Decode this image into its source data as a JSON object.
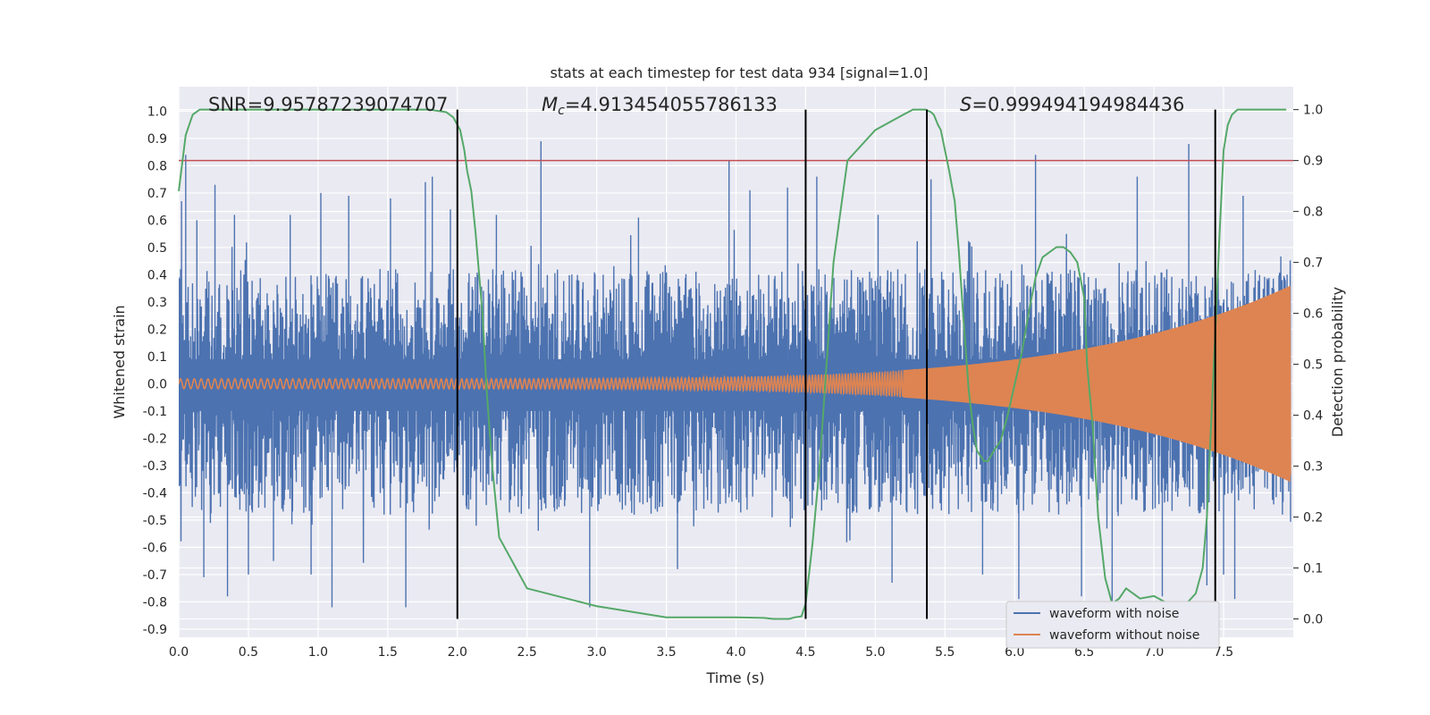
{
  "chart_data": {
    "type": "line",
    "title": "stats at each timestep for test data 934 [signal=1.0]",
    "xlabel": "Time (s)",
    "ylabel": "Whitened strain",
    "y2label": "Detection probability",
    "xlim": [
      0,
      8.0
    ],
    "ylim": [
      -0.93,
      1.09
    ],
    "y2lim": [
      -0.036,
      1.045
    ],
    "xticks": [
      "0.0",
      "0.5",
      "1.0",
      "1.5",
      "2.0",
      "2.5",
      "3.0",
      "3.5",
      "4.0",
      "4.5",
      "5.0",
      "5.5",
      "6.0",
      "6.5",
      "7.0",
      "7.5"
    ],
    "yticks": [
      "1.0",
      "0.9",
      "0.8",
      "0.7",
      "0.6",
      "0.5",
      "0.4",
      "0.3",
      "0.2",
      "0.1",
      "0.0",
      "-0.1",
      "-0.2",
      "-0.3",
      "-0.4",
      "-0.5",
      "-0.6",
      "-0.7",
      "-0.8",
      "-0.9"
    ],
    "y2ticks": [
      "1.0",
      "0.9",
      "0.8",
      "0.7",
      "0.6",
      "0.5",
      "0.4",
      "0.3",
      "0.2",
      "0.1",
      "0.0"
    ],
    "grid": true,
    "legend_position": "lower-right",
    "stats": {
      "snr": "SNR=9.95787239074707",
      "mc_symbol": "M",
      "mc_sub": "c",
      "mc_value": "=4.913454055786133",
      "s_symbol": "S",
      "s_value": "=0.999494194984436"
    },
    "threshold_y2": 0.9,
    "boundaries_x": [
      2.0,
      4.5,
      5.37,
      7.44
    ],
    "series": [
      {
        "name": "waveform with noise",
        "color": "#4c72b0",
        "kind": "noise",
        "envelope_upper_typical": 0.42,
        "envelope_lower_typical": -0.48,
        "spikes": [
          [
            0.02,
            0.67
          ],
          [
            0.05,
            0.84
          ],
          [
            0.13,
            0.6
          ],
          [
            0.18,
            -0.71
          ],
          [
            0.26,
            0.73
          ],
          [
            0.35,
            -0.78
          ],
          [
            0.4,
            0.62
          ],
          [
            0.5,
            -0.7
          ],
          [
            0.68,
            -0.65
          ],
          [
            0.8,
            0.62
          ],
          [
            0.95,
            -0.7
          ],
          [
            1.02,
            0.7
          ],
          [
            1.1,
            -0.82
          ],
          [
            1.22,
            0.69
          ],
          [
            1.52,
            0.68
          ],
          [
            1.63,
            -0.82
          ],
          [
            1.77,
            0.74
          ],
          [
            1.82,
            0.76
          ],
          [
            1.95,
            0.64
          ],
          [
            2.28,
            0.62
          ],
          [
            2.6,
            0.89
          ],
          [
            2.95,
            -0.82
          ],
          [
            3.3,
            0.61
          ],
          [
            3.58,
            -0.68
          ],
          [
            3.95,
            0.82
          ],
          [
            4.1,
            0.71
          ],
          [
            4.37,
            0.72
          ],
          [
            4.58,
            0.76
          ],
          [
            5.02,
            0.62
          ],
          [
            5.12,
            -0.73
          ],
          [
            5.4,
            0.75
          ],
          [
            5.77,
            -0.7
          ],
          [
            6.03,
            -0.79
          ],
          [
            6.15,
            0.84
          ],
          [
            6.48,
            -0.78
          ],
          [
            6.7,
            -0.81
          ],
          [
            6.88,
            0.76
          ],
          [
            7.06,
            -0.78
          ],
          [
            7.25,
            0.88
          ],
          [
            7.38,
            -0.74
          ],
          [
            7.5,
            -0.7
          ],
          [
            7.58,
            -0.79
          ],
          [
            7.64,
            0.69
          ]
        ]
      },
      {
        "name": "waveform without noise",
        "color": "#dd8452",
        "kind": "chirp",
        "amp_start": 0.018,
        "amp_end": 0.36
      },
      {
        "name": "detection probability",
        "color": "#55a868",
        "axis": "right",
        "x": [
          0.0,
          0.05,
          0.1,
          0.15,
          0.2,
          0.5,
          1.0,
          1.5,
          1.8,
          1.92,
          1.97,
          2.02,
          2.05,
          2.07,
          2.1,
          2.13,
          2.18,
          2.21,
          2.25,
          2.3,
          2.5,
          3.0,
          3.5,
          4.0,
          4.2,
          4.27,
          4.33,
          4.38,
          4.42,
          4.47,
          4.5,
          4.55,
          4.6,
          4.65,
          4.7,
          4.8,
          5.0,
          5.2,
          5.27,
          5.3,
          5.33,
          5.36,
          5.4,
          5.42,
          5.45,
          5.47,
          5.5,
          5.53,
          5.57,
          5.6,
          5.63,
          5.67,
          5.7,
          5.73,
          5.78,
          5.81,
          5.85,
          5.9,
          5.95,
          6.0,
          6.05,
          6.1,
          6.15,
          6.2,
          6.25,
          6.3,
          6.35,
          6.4,
          6.45,
          6.5,
          6.52,
          6.56,
          6.6,
          6.65,
          6.7,
          6.75,
          6.8,
          6.9,
          7.0,
          7.1,
          7.2,
          7.3,
          7.35,
          7.38,
          7.41,
          7.44,
          7.47,
          7.5,
          7.53,
          7.56,
          7.6,
          7.7,
          7.8,
          7.95
        ],
        "y": [
          0.84,
          0.95,
          0.99,
          1.0,
          1.0,
          1.0,
          1.0,
          1.0,
          1.0,
          0.995,
          0.985,
          0.96,
          0.92,
          0.88,
          0.84,
          0.76,
          0.6,
          0.45,
          0.3,
          0.16,
          0.06,
          0.025,
          0.003,
          0.003,
          0.002,
          0.0,
          0.0,
          0.0,
          0.003,
          0.005,
          0.03,
          0.15,
          0.3,
          0.5,
          0.7,
          0.9,
          0.96,
          0.99,
          1.0,
          1.0,
          1.0,
          1.0,
          0.995,
          0.99,
          0.97,
          0.96,
          0.92,
          0.88,
          0.82,
          0.72,
          0.6,
          0.45,
          0.38,
          0.33,
          0.31,
          0.31,
          0.33,
          0.35,
          0.4,
          0.46,
          0.52,
          0.6,
          0.67,
          0.71,
          0.72,
          0.73,
          0.73,
          0.72,
          0.7,
          0.63,
          0.5,
          0.38,
          0.2,
          0.08,
          0.03,
          0.04,
          0.06,
          0.04,
          0.045,
          0.03,
          0.02,
          0.05,
          0.1,
          0.2,
          0.38,
          0.56,
          0.75,
          0.92,
          0.97,
          0.99,
          1.0,
          1.0,
          1.0,
          1.0
        ]
      }
    ]
  }
}
